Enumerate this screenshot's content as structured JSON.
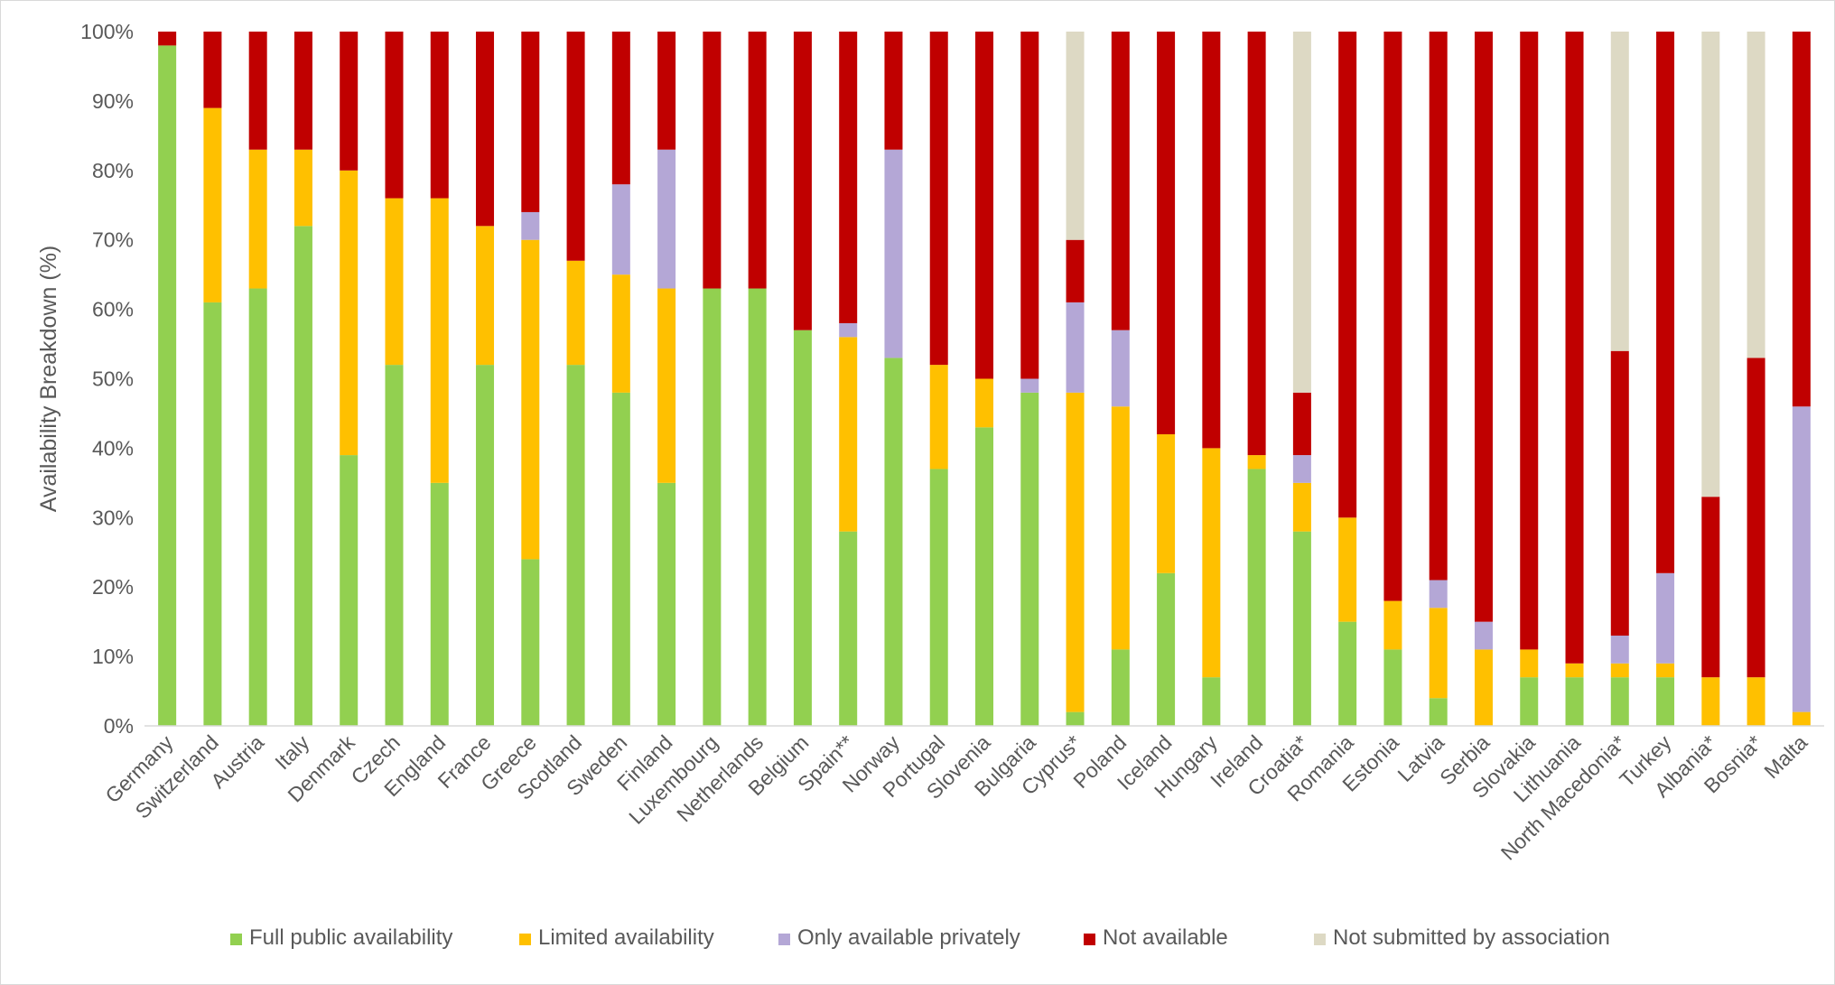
{
  "chart_data": {
    "type": "bar",
    "stacked": true,
    "title": "",
    "xlabel": "",
    "ylabel": "Availability Breakdown (%)",
    "ylim": [
      0,
      100
    ],
    "yticks": [
      "0%",
      "10%",
      "20%",
      "30%",
      "40%",
      "50%",
      "60%",
      "70%",
      "80%",
      "90%",
      "100%"
    ],
    "grid": false,
    "legend_position": "bottom",
    "categories": [
      "Germany",
      "Switzerland",
      "Austria",
      "Italy",
      "Denmark",
      "Czech",
      "England",
      "France",
      "Greece",
      "Scotland",
      "Sweden",
      "Finland",
      "Luxembourg",
      "Netherlands",
      "Belgium",
      "Spain**",
      "Norway",
      "Portugal",
      "Slovenia",
      "Bulgaria",
      "Cyprus*",
      "Poland",
      "Iceland",
      "Hungary",
      "Ireland",
      "Croatia*",
      "Romania",
      "Estonia",
      "Latvia",
      "Serbia",
      "Slovakia",
      "Lithuania",
      "North Macedonia*",
      "Turkey",
      "Albania*",
      "Bosnia*",
      "Malta"
    ],
    "series": [
      {
        "name": "Full public availability",
        "color": "#92d050",
        "values": [
          98,
          61,
          63,
          72,
          39,
          52,
          35,
          52,
          24,
          52,
          48,
          35,
          63,
          63,
          57,
          28,
          53,
          37,
          43,
          48,
          2,
          11,
          22,
          7,
          37,
          28,
          15,
          11,
          4,
          0,
          7,
          7,
          7,
          7,
          0,
          0,
          0
        ]
      },
      {
        "name": "Limited availability",
        "color": "#ffc000",
        "values": [
          0,
          28,
          20,
          11,
          41,
          24,
          41,
          20,
          46,
          15,
          17,
          28,
          0,
          0,
          0,
          28,
          0,
          15,
          7,
          0,
          46,
          35,
          20,
          33,
          2,
          7,
          15,
          7,
          13,
          11,
          4,
          2,
          2,
          2,
          7,
          7,
          2
        ]
      },
      {
        "name": "Only available privately",
        "color": "#b4a7d6",
        "values": [
          0,
          0,
          0,
          0,
          0,
          0,
          0,
          0,
          4,
          0,
          13,
          20,
          0,
          0,
          0,
          2,
          30,
          0,
          0,
          2,
          13,
          11,
          0,
          0,
          0,
          4,
          0,
          0,
          4,
          4,
          0,
          0,
          4,
          13,
          0,
          0,
          44
        ]
      },
      {
        "name": "Not available",
        "color": "#c00000",
        "values": [
          2,
          11,
          17,
          17,
          20,
          24,
          24,
          28,
          26,
          33,
          22,
          17,
          37,
          37,
          43,
          42,
          17,
          48,
          50,
          50,
          9,
          43,
          58,
          60,
          61,
          9,
          70,
          82,
          79,
          85,
          89,
          91,
          41,
          78,
          26,
          46,
          54
        ]
      },
      {
        "name": "Not submitted by association",
        "color": "#ddd9c4",
        "values": [
          0,
          0,
          0,
          0,
          0,
          0,
          0,
          0,
          0,
          0,
          0,
          0,
          0,
          0,
          0,
          0,
          0,
          0,
          0,
          0,
          30,
          0,
          0,
          0,
          0,
          52,
          0,
          0,
          0,
          0,
          0,
          0,
          46,
          0,
          67,
          47,
          0
        ]
      }
    ]
  }
}
